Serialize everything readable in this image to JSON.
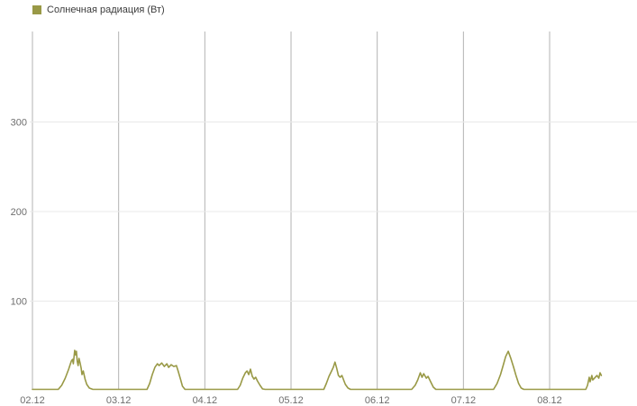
{
  "page": {
    "background": "#ffffff"
  },
  "legend": {
    "label": "Солнечная радиация (Вт)",
    "swatch_color": "#999946"
  },
  "chart_data": {
    "type": "line",
    "title": "Солнечная радиация (Вт)",
    "ylabel": "",
    "xlabel": "",
    "unit": "Вт",
    "legend_position": "top-left",
    "grid": {
      "vertical": true,
      "horizontal": true,
      "vertical_color": "#b3b3b3",
      "horizontal_color": "#e9e9e9"
    },
    "colors": {
      "line": "#999946",
      "tick_label": "#6e6e6e",
      "background": "#ffffff"
    },
    "ylim": [
      0,
      400
    ],
    "y_ticks": [
      100,
      200,
      300
    ],
    "x_ticks": [
      {
        "label": "02.12",
        "day": 0
      },
      {
        "label": "03.12",
        "day": 1
      },
      {
        "label": "04.12",
        "day": 2
      },
      {
        "label": "05.12",
        "day": 3
      },
      {
        "label": "06.12",
        "day": 4
      },
      {
        "label": "07.12",
        "day": 5
      },
      {
        "label": "08.12",
        "day": 6
      }
    ],
    "xlim_days": [
      0,
      7.01
    ],
    "series": [
      {
        "name": "Солнечная радиация (Вт)",
        "color": "#999946",
        "points_format": [
          "day_offset_from_02.12",
          "watts"
        ],
        "points": [
          [
            0.0,
            1.5
          ],
          [
            0.3,
            1.5
          ],
          [
            0.34,
            6
          ],
          [
            0.38,
            14
          ],
          [
            0.42,
            24
          ],
          [
            0.45,
            33
          ],
          [
            0.465,
            35
          ],
          [
            0.475,
            30
          ],
          [
            0.49,
            45
          ],
          [
            0.5,
            40
          ],
          [
            0.51,
            44
          ],
          [
            0.52,
            33
          ],
          [
            0.53,
            28
          ],
          [
            0.54,
            36
          ],
          [
            0.555,
            30
          ],
          [
            0.565,
            25
          ],
          [
            0.575,
            18
          ],
          [
            0.59,
            22
          ],
          [
            0.61,
            13
          ],
          [
            0.63,
            7
          ],
          [
            0.66,
            3
          ],
          [
            0.7,
            1.5
          ],
          [
            1.33,
            1.5
          ],
          [
            1.36,
            8
          ],
          [
            1.39,
            18
          ],
          [
            1.42,
            26
          ],
          [
            1.45,
            30
          ],
          [
            1.47,
            28
          ],
          [
            1.5,
            31
          ],
          [
            1.53,
            27
          ],
          [
            1.56,
            30
          ],
          [
            1.58,
            26
          ],
          [
            1.61,
            29
          ],
          [
            1.64,
            27
          ],
          [
            1.67,
            28
          ],
          [
            1.69,
            22
          ],
          [
            1.72,
            12
          ],
          [
            1.74,
            5
          ],
          [
            1.77,
            1.5
          ],
          [
            2.38,
            1.5
          ],
          [
            2.41,
            6
          ],
          [
            2.44,
            14
          ],
          [
            2.47,
            20
          ],
          [
            2.49,
            22
          ],
          [
            2.51,
            18
          ],
          [
            2.53,
            24
          ],
          [
            2.55,
            16
          ],
          [
            2.57,
            13
          ],
          [
            2.59,
            15
          ],
          [
            2.61,
            11
          ],
          [
            2.64,
            6
          ],
          [
            2.67,
            2
          ],
          [
            2.7,
            1.5
          ],
          [
            3.38,
            1.5
          ],
          [
            3.41,
            8
          ],
          [
            3.44,
            16
          ],
          [
            3.47,
            22
          ],
          [
            3.49,
            26
          ],
          [
            3.51,
            32
          ],
          [
            3.53,
            25
          ],
          [
            3.55,
            17
          ],
          [
            3.57,
            15
          ],
          [
            3.59,
            17
          ],
          [
            3.61,
            12
          ],
          [
            3.63,
            7
          ],
          [
            3.66,
            3
          ],
          [
            3.69,
            1.5
          ],
          [
            4.4,
            1.5
          ],
          [
            4.44,
            6
          ],
          [
            4.47,
            12
          ],
          [
            4.5,
            20
          ],
          [
            4.52,
            15
          ],
          [
            4.54,
            19
          ],
          [
            4.57,
            14
          ],
          [
            4.59,
            16
          ],
          [
            4.62,
            10
          ],
          [
            4.65,
            4
          ],
          [
            4.68,
            1.5
          ],
          [
            5.35,
            1.5
          ],
          [
            5.39,
            8
          ],
          [
            5.43,
            18
          ],
          [
            5.46,
            28
          ],
          [
            5.49,
            38
          ],
          [
            5.52,
            44
          ],
          [
            5.55,
            36
          ],
          [
            5.58,
            27
          ],
          [
            5.61,
            17
          ],
          [
            5.64,
            8
          ],
          [
            5.67,
            3
          ],
          [
            5.7,
            1.5
          ],
          [
            6.42,
            1.5
          ],
          [
            6.44,
            6
          ],
          [
            6.46,
            15
          ],
          [
            6.47,
            10
          ],
          [
            6.49,
            17
          ],
          [
            6.5,
            12
          ],
          [
            6.52,
            14
          ],
          [
            6.55,
            17
          ],
          [
            6.57,
            14
          ],
          [
            6.585,
            20
          ],
          [
            6.6,
            17
          ]
        ]
      }
    ]
  }
}
